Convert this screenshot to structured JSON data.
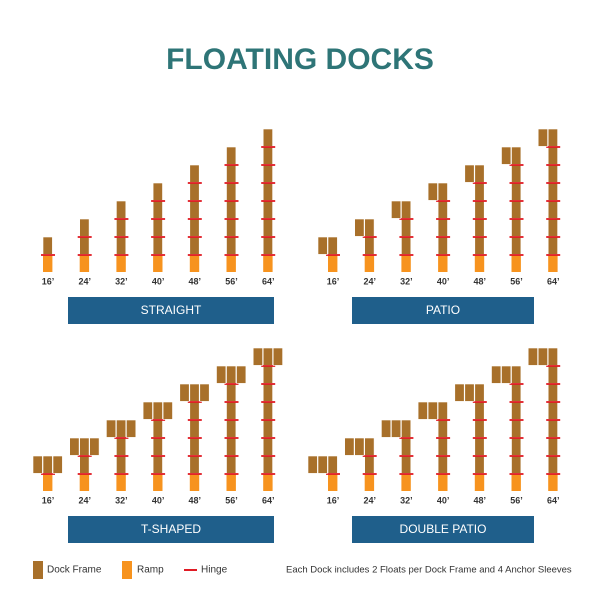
{
  "title": "FLOATING DOCKS",
  "panels": [
    {
      "name": "STRAIGHT",
      "docks": [
        "16’",
        "24’",
        "32’",
        "40’",
        "48’",
        "56’",
        "64’"
      ]
    },
    {
      "name": "PATIO",
      "docks": [
        "16’",
        "24’",
        "32’",
        "40’",
        "48’",
        "56’",
        "64’"
      ]
    },
    {
      "name": "T-SHAPED",
      "docks": [
        "16’",
        "24’",
        "32’",
        "40’",
        "48’",
        "56’",
        "64’"
      ]
    },
    {
      "name": "DOUBLE PATIO",
      "docks": [
        "16’",
        "24’",
        "32’",
        "40’",
        "48’",
        "56’",
        "64’"
      ]
    }
  ],
  "legend": {
    "frame": "Dock Frame",
    "ramp": "Ramp",
    "hinge": "Hinge"
  },
  "note": "Each Dock includes 2 Floats per Dock Frame and 4 Anchor Sleeves"
}
